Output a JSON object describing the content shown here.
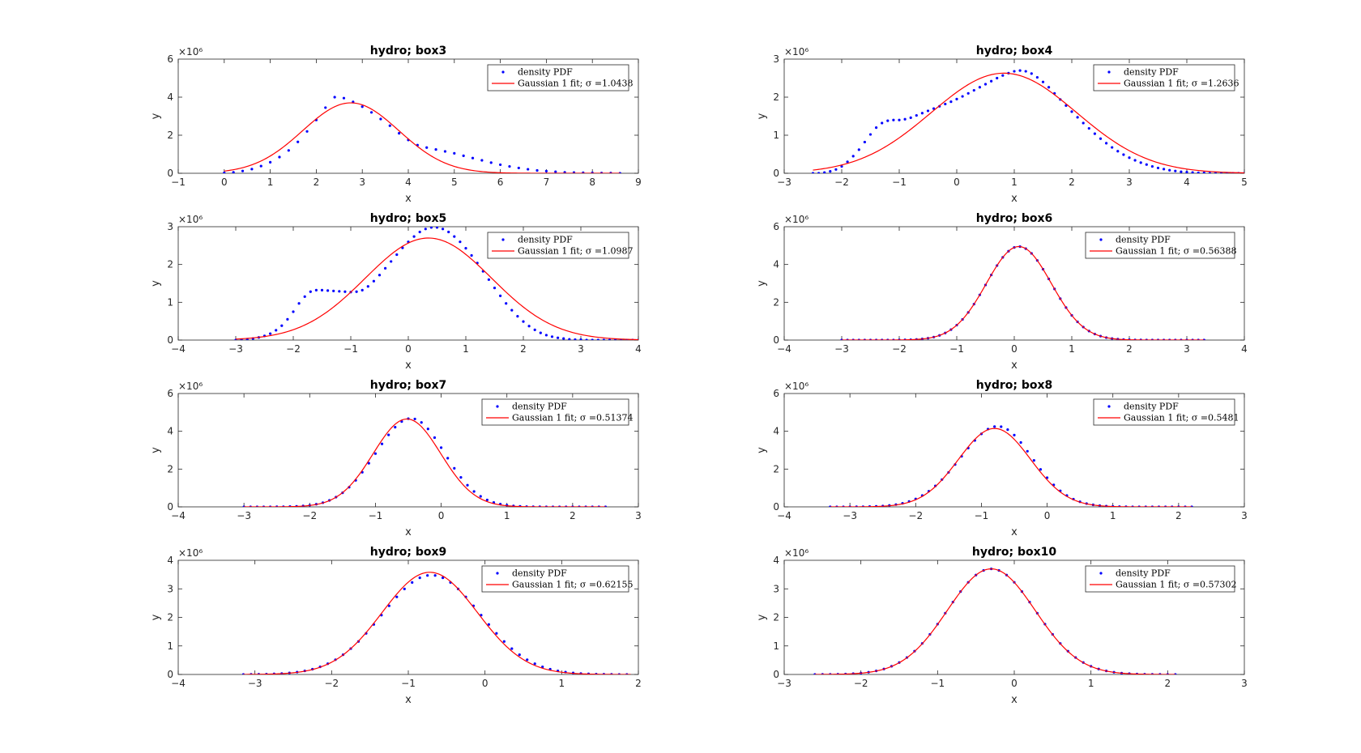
{
  "figure": {
    "background": "#ffffff"
  },
  "chart_data": [
    {
      "type": "scatter",
      "title": "hydro; box3",
      "xlabel": "x",
      "ylabel": "y",
      "xlim": [
        -1,
        9
      ],
      "ylim": [
        0,
        6
      ],
      "xticks": [
        -1,
        0,
        1,
        2,
        3,
        4,
        5,
        6,
        7,
        8,
        9
      ],
      "yticks": [
        0,
        2,
        4
      ],
      "yticklabels": [
        "0",
        "2",
        "4",
        "6"
      ],
      "exponent_label": "×10⁶",
      "legend": [
        "density PDF",
        "Gaussian 1 fit; σ =1.0438"
      ],
      "legend_position": "top-right",
      "colors": {
        "points": "#0000ff",
        "fit": "#ff0000"
      },
      "series": [
        {
          "name": "density PDF",
          "style": "dots",
          "fn": "points",
          "x": [
            0,
            0.2,
            0.4,
            0.6,
            0.8,
            1,
            1.2,
            1.4,
            1.6,
            1.8,
            2,
            2.2,
            2.4,
            2.6,
            2.8,
            3,
            3.2,
            3.4,
            3.6,
            3.8,
            4,
            4.2,
            4.4,
            4.6,
            4.8,
            5,
            5.2,
            5.4,
            5.6,
            5.8,
            6,
            6.2,
            6.4,
            6.6,
            6.8,
            7,
            7.2,
            7.4,
            7.6,
            7.8,
            8,
            8.2,
            8.4,
            8.6
          ],
          "y": [
            0.02,
            0.05,
            0.12,
            0.22,
            0.38,
            0.58,
            0.85,
            1.2,
            1.65,
            2.2,
            2.8,
            3.45,
            4.0,
            3.95,
            3.75,
            3.5,
            3.2,
            2.85,
            2.5,
            2.1,
            1.75,
            1.48,
            1.35,
            1.25,
            1.15,
            1.05,
            0.92,
            0.8,
            0.68,
            0.56,
            0.45,
            0.36,
            0.28,
            0.21,
            0.15,
            0.11,
            0.08,
            0.05,
            0.04,
            0.03,
            0.02,
            0.01,
            0.01,
            0.0
          ]
        },
        {
          "name": "Gaussian 1 fit; σ =1.0438",
          "style": "line",
          "fn": "gaussian",
          "a": 3.7,
          "mu": 2.75,
          "sigma": 1.0438,
          "xrange": [
            0,
            8.6
          ]
        }
      ]
    },
    {
      "type": "scatter",
      "title": "hydro; box4",
      "xlabel": "x",
      "ylabel": "y",
      "xlim": [
        -3,
        5
      ],
      "ylim": [
        0,
        3
      ],
      "xticks": [
        -3,
        -2,
        -1,
        0,
        1,
        2,
        3,
        4,
        5
      ],
      "yticks": [
        0,
        1,
        2
      ],
      "yticklabels": [
        "0",
        "1",
        "2",
        "3"
      ],
      "exponent_label": "×10⁶",
      "legend": [
        "density PDF",
        "Gaussian 1 fit; σ =1.2636"
      ],
      "legend_position": "top-right",
      "colors": {
        "points": "#0000ff",
        "fit": "#ff0000"
      },
      "series": [
        {
          "name": "density PDF",
          "style": "dots",
          "fn": "points",
          "x": [
            -2.5,
            -2.4,
            -2.3,
            -2.2,
            -2.1,
            -2.0,
            -1.9,
            -1.8,
            -1.7,
            -1.6,
            -1.5,
            -1.4,
            -1.3,
            -1.2,
            -1.1,
            -1.0,
            -0.9,
            -0.8,
            -0.7,
            -0.6,
            -0.5,
            -0.4,
            -0.3,
            -0.2,
            -0.1,
            0,
            0.1,
            0.2,
            0.3,
            0.4,
            0.5,
            0.6,
            0.7,
            0.8,
            0.9,
            1.0,
            1.1,
            1.2,
            1.3,
            1.4,
            1.5,
            1.6,
            1.7,
            1.8,
            1.9,
            2.0,
            2.1,
            2.2,
            2.3,
            2.4,
            2.5,
            2.6,
            2.7,
            2.8,
            2.9,
            3.0,
            3.1,
            3.2,
            3.3,
            3.4,
            3.5,
            3.6,
            3.7,
            3.8,
            3.9,
            4.0,
            4.1,
            4.2,
            4.3,
            4.4,
            4.5,
            4.6,
            4.7,
            4.8,
            4.9,
            5.0
          ],
          "y": [
            0.0,
            0.0,
            0.02,
            0.05,
            0.1,
            0.18,
            0.3,
            0.45,
            0.62,
            0.82,
            1.02,
            1.2,
            1.32,
            1.38,
            1.4,
            1.4,
            1.42,
            1.46,
            1.52,
            1.58,
            1.64,
            1.7,
            1.76,
            1.82,
            1.88,
            1.95,
            2.02,
            2.1,
            2.18,
            2.26,
            2.34,
            2.42,
            2.5,
            2.57,
            2.63,
            2.68,
            2.7,
            2.68,
            2.62,
            2.52,
            2.4,
            2.26,
            2.1,
            1.94,
            1.78,
            1.62,
            1.47,
            1.32,
            1.18,
            1.04,
            0.91,
            0.79,
            0.68,
            0.58,
            0.49,
            0.41,
            0.34,
            0.28,
            0.23,
            0.18,
            0.14,
            0.11,
            0.08,
            0.06,
            0.04,
            0.03,
            0.02,
            0.01,
            0.01,
            0.0,
            0.0,
            0.0,
            0.0,
            0.0,
            0.0,
            0.0
          ]
        },
        {
          "name": "Gaussian 1 fit; σ =1.2636",
          "style": "line",
          "fn": "gaussian",
          "a": 2.63,
          "mu": 0.82,
          "sigma": 1.2636,
          "xrange": [
            -2.5,
            5
          ]
        }
      ]
    },
    {
      "type": "scatter",
      "title": "hydro; box5",
      "xlabel": "x",
      "ylabel": "y",
      "xlim": [
        -4,
        4
      ],
      "ylim": [
        0,
        3
      ],
      "xticks": [
        -4,
        -3,
        -2,
        -1,
        0,
        1,
        2,
        3,
        4
      ],
      "yticks": [
        0,
        1,
        2
      ],
      "yticklabels": [
        "0",
        "1",
        "2",
        "3"
      ],
      "exponent_label": "×10⁶",
      "legend": [
        "density PDF",
        "Gaussian 1 fit; σ =1.0987"
      ],
      "legend_position": "top-right",
      "colors": {
        "points": "#0000ff",
        "fit": "#ff0000"
      },
      "series": [
        {
          "name": "density PDF",
          "style": "dots",
          "fn": "points",
          "x": [
            -3.0,
            -2.9,
            -2.8,
            -2.7,
            -2.6,
            -2.5,
            -2.4,
            -2.3,
            -2.2,
            -2.1,
            -2.0,
            -1.9,
            -1.8,
            -1.7,
            -1.6,
            -1.5,
            -1.4,
            -1.3,
            -1.2,
            -1.1,
            -1.0,
            -0.9,
            -0.8,
            -0.7,
            -0.6,
            -0.5,
            -0.4,
            -0.3,
            -0.2,
            -0.1,
            0,
            0.1,
            0.2,
            0.3,
            0.4,
            0.5,
            0.6,
            0.7,
            0.8,
            0.9,
            1.0,
            1.1,
            1.2,
            1.3,
            1.4,
            1.5,
            1.6,
            1.7,
            1.8,
            1.9,
            2.0,
            2.1,
            2.2,
            2.3,
            2.4,
            2.5,
            2.6,
            2.7,
            2.8,
            2.9,
            3.0,
            3.1,
            3.2,
            3.3,
            3.4,
            3.5,
            3.6,
            3.7,
            3.8,
            3.9,
            4.0
          ],
          "y": [
            0.0,
            0.01,
            0.02,
            0.04,
            0.07,
            0.11,
            0.17,
            0.26,
            0.38,
            0.55,
            0.75,
            0.97,
            1.15,
            1.28,
            1.32,
            1.32,
            1.31,
            1.3,
            1.29,
            1.28,
            1.27,
            1.28,
            1.32,
            1.42,
            1.56,
            1.72,
            1.9,
            2.08,
            2.26,
            2.44,
            2.6,
            2.74,
            2.86,
            2.94,
            2.98,
            2.98,
            2.94,
            2.86,
            2.74,
            2.6,
            2.43,
            2.24,
            2.04,
            1.82,
            1.6,
            1.38,
            1.17,
            0.97,
            0.79,
            0.63,
            0.49,
            0.37,
            0.27,
            0.19,
            0.13,
            0.09,
            0.06,
            0.04,
            0.02,
            0.01,
            0.01,
            0.0,
            0.0,
            0.0,
            0.0,
            0.0,
            0.0,
            0.0,
            0.0,
            0.0,
            0.0
          ]
        },
        {
          "name": "Gaussian 1 fit; σ =1.0987",
          "style": "line",
          "fn": "gaussian",
          "a": 2.7,
          "mu": 0.35,
          "sigma": 1.0987,
          "xrange": [
            -3.0,
            4.0
          ]
        }
      ]
    },
    {
      "type": "scatter",
      "title": "hydro; box6",
      "xlabel": "x",
      "ylabel": "y",
      "xlim": [
        -4,
        4
      ],
      "ylim": [
        0,
        6
      ],
      "xticks": [
        -4,
        -3,
        -2,
        -1,
        0,
        1,
        2,
        3,
        4
      ],
      "yticks": [
        0,
        2,
        4
      ],
      "yticklabels": [
        "0",
        "2",
        "4",
        "6"
      ],
      "exponent_label": "×10⁶",
      "legend": [
        "density PDF",
        "Gaussian 1 fit; σ =0.56388"
      ],
      "legend_position": "top-right",
      "colors": {
        "points": "#0000ff",
        "fit": "#ff0000"
      },
      "series": [
        {
          "name": "density PDF",
          "style": "dots",
          "fn": "gaussian",
          "a": 4.95,
          "mu": 0.08,
          "sigma": 0.5639,
          "xrange": [
            -3.0,
            3.3
          ],
          "step": 0.1
        },
        {
          "name": "Gaussian 1 fit; σ =0.56388",
          "style": "line",
          "fn": "gaussian",
          "a": 4.95,
          "mu": 0.08,
          "sigma": 0.56388,
          "xrange": [
            -3.0,
            3.3
          ]
        }
      ]
    },
    {
      "type": "scatter",
      "title": "hydro; box7",
      "xlabel": "x",
      "ylabel": "y",
      "xlim": [
        -4,
        3
      ],
      "ylim": [
        0,
        6
      ],
      "xticks": [
        -4,
        -3,
        -2,
        -1,
        0,
        1,
        2,
        3
      ],
      "yticks": [
        0,
        2,
        4
      ],
      "yticklabels": [
        "0",
        "2",
        "4",
        "6"
      ],
      "exponent_label": "×10⁶",
      "legend": [
        "density PDF",
        "Gaussian 1 fit; σ =0.51374"
      ],
      "legend_position": "top-right",
      "colors": {
        "points": "#0000ff",
        "fit": "#ff0000"
      },
      "series": [
        {
          "name": "density PDF",
          "style": "dots",
          "fn": "gaussian",
          "a": 4.65,
          "mu": -0.52,
          "sigma": 0.53,
          "skew": 0.12,
          "xrange": [
            -3.0,
            2.5
          ],
          "step": 0.1
        },
        {
          "name": "Gaussian 1 fit; σ =0.51374",
          "style": "line",
          "fn": "gaussian",
          "a": 4.65,
          "mu": -0.52,
          "sigma": 0.51374,
          "xrange": [
            -3.0,
            2.5
          ]
        }
      ]
    },
    {
      "type": "scatter",
      "title": "hydro; box8",
      "xlabel": "x",
      "ylabel": "y",
      "xlim": [
        -4,
        3
      ],
      "ylim": [
        0,
        6
      ],
      "xticks": [
        -4,
        -3,
        -2,
        -1,
        0,
        1,
        2,
        3
      ],
      "yticks": [
        0,
        2,
        4
      ],
      "yticklabels": [
        "0",
        "2",
        "4",
        "6"
      ],
      "exponent_label": "×10⁶",
      "legend": [
        "density PDF",
        "Gaussian 1 fit; σ =0.5481"
      ],
      "legend_position": "top-right",
      "colors": {
        "points": "#0000ff",
        "fit": "#ff0000"
      },
      "series": [
        {
          "name": "density PDF",
          "style": "dots",
          "fn": "gaussian",
          "a": 4.2,
          "mu": -0.85,
          "sigma": 0.56,
          "skew": 0.18,
          "xrange": [
            -3.3,
            2.2
          ],
          "step": 0.1
        },
        {
          "name": "Gaussian 1 fit; σ =0.5481",
          "style": "line",
          "fn": "gaussian",
          "a": 4.15,
          "mu": -0.8,
          "sigma": 0.5481,
          "xrange": [
            -3.3,
            2.2
          ]
        }
      ]
    },
    {
      "type": "scatter",
      "title": "hydro; box9",
      "xlabel": "x",
      "ylabel": "y",
      "xlim": [
        -4,
        2
      ],
      "ylim": [
        0,
        4
      ],
      "xticks": [
        -4,
        -3,
        -2,
        -1,
        0,
        1,
        2
      ],
      "yticks": [
        0,
        1,
        2,
        3
      ],
      "yticklabels": [
        "0",
        "1",
        "2",
        "3",
        "4"
      ],
      "exponent_label": "×10⁶",
      "legend": [
        "density PDF",
        "Gaussian 1 fit; σ =0.62155"
      ],
      "legend_position": "top-right",
      "colors": {
        "points": "#0000ff",
        "fit": "#ff0000"
      },
      "series": [
        {
          "name": "density PDF",
          "style": "dots",
          "fn": "gaussian",
          "a": 3.48,
          "mu": -0.7,
          "sigma": 0.64,
          "xrange": [
            -3.15,
            1.9
          ],
          "step": 0.1
        },
        {
          "name": "Gaussian 1 fit; σ =0.62155",
          "style": "line",
          "fn": "gaussian",
          "a": 3.58,
          "mu": -0.72,
          "sigma": 0.62155,
          "xrange": [
            -3.15,
            1.9
          ]
        }
      ]
    },
    {
      "type": "scatter",
      "title": "hydro; box10",
      "xlabel": "x",
      "ylabel": "y",
      "xlim": [
        -3,
        3
      ],
      "ylim": [
        0,
        4
      ],
      "xticks": [
        -3,
        -2,
        -1,
        0,
        1,
        2,
        3
      ],
      "yticks": [
        0,
        1,
        2,
        3
      ],
      "yticklabels": [
        "0",
        "1",
        "2",
        "3",
        "4"
      ],
      "exponent_label": "×10⁶",
      "legend": [
        "density PDF",
        "Gaussian 1 fit; σ =0.57302"
      ],
      "legend_position": "top-right",
      "colors": {
        "points": "#0000ff",
        "fit": "#ff0000"
      },
      "series": [
        {
          "name": "density PDF",
          "style": "dots",
          "fn": "gaussian",
          "a": 3.7,
          "mu": -0.3,
          "sigma": 0.575,
          "xrange": [
            -2.6,
            2.1
          ],
          "step": 0.1
        },
        {
          "name": "Gaussian 1 fit; σ =0.57302",
          "style": "line",
          "fn": "gaussian",
          "a": 3.7,
          "mu": -0.3,
          "sigma": 0.57302,
          "xrange": [
            -2.6,
            2.1
          ]
        }
      ]
    }
  ]
}
